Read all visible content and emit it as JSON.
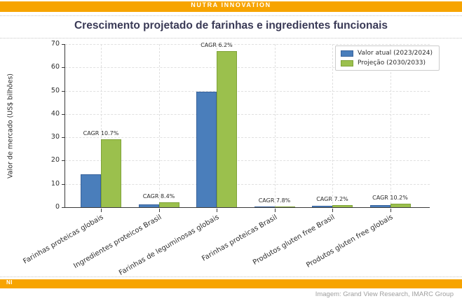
{
  "banner": {
    "text": "NUTRA INNOVATION",
    "color": "#F7A400"
  },
  "title": "Crescimento projetado de farinhas e ingredientes funcionais",
  "footer": {
    "badge": "NI",
    "credit": "Imagem: Grand View Research, IMARC Group",
    "bar_color": "#F7A400"
  },
  "chart_data": {
    "type": "bar",
    "title": "Crescimento projetado de farinhas e ingredientes funcionais",
    "ylabel": "Valor de mercado (US$ bilhões)",
    "ylim": [
      0,
      70
    ],
    "yticks": [
      0,
      10,
      20,
      30,
      40,
      50,
      60,
      70
    ],
    "grid": "dashed, horizontal and vertical at category centers",
    "legend_position": "upper right",
    "categories": [
      "Farinhas proteicas globais",
      "Ingredientes proteicos Brasil",
      "Farinhas de leguminosas globais",
      "Farinhas proteicas Brasil",
      "Produtos gluten free Brasil",
      "Produtos gluten free globais"
    ],
    "series": [
      {
        "name": "Valor atual (2023/2024)",
        "color": "#4a7ebb",
        "edge_color": "#39639c",
        "values": [
          14,
          1.2,
          49.7,
          0.12,
          0.5,
          0.9
        ]
      },
      {
        "name": "Projeção (2030/2033)",
        "color": "#9bc04d",
        "edge_color": "#7fa338",
        "values": [
          29,
          2.1,
          67,
          0.25,
          0.8,
          1.4
        ]
      }
    ],
    "annotations": [
      "CAGR 10.7%",
      "CAGR 8.4%",
      "CAGR 6.2%",
      "CAGR 7.8%",
      "CAGR 7.2%",
      "CAGR 10.2%"
    ]
  }
}
